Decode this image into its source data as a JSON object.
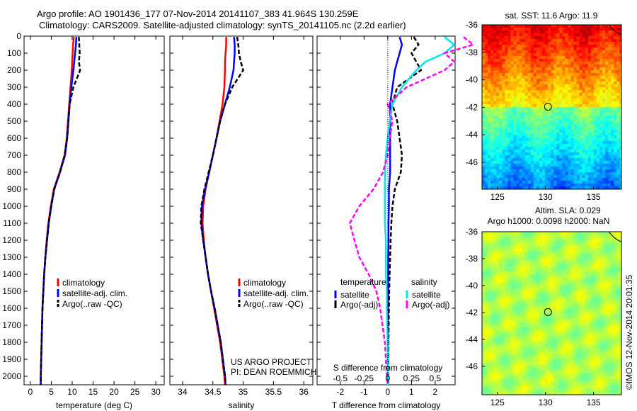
{
  "title_line1": "Argo profile: AO 1901436_177 07-Nov-2014 20141107_383 41.964S 130.259E",
  "title_line2": "Climatology: CARS2009. Satellite-adjusted climatology: synTS_20141105.nc (2.2d earlier)",
  "footer_project": "US ARGO PROJECT",
  "footer_pi": "PI: DEAN ROEMMICH",
  "imos_stamp": "©IMOS 12-Nov-2014 20:01:35",
  "colors": {
    "clim": "#ff0000",
    "sat": "#0000ff",
    "argo": "#000000",
    "sal_sat": "#00e5ee",
    "sal_argo": "#ff00ff"
  },
  "chart_data": [
    {
      "type": "line",
      "xlabel": "temperature (deg C)",
      "ylim": [
        2050,
        0
      ],
      "xlim": [
        -1.5,
        32
      ],
      "xticks": [
        0,
        5,
        10,
        15,
        20,
        25,
        30
      ],
      "yticks": [
        0,
        100,
        200,
        300,
        400,
        500,
        600,
        700,
        800,
        900,
        1000,
        1100,
        1200,
        1300,
        1400,
        1500,
        1600,
        1700,
        1800,
        1900,
        2000
      ],
      "legend": [
        "climatology",
        "satellite-adj. clim.",
        "Argo(..raw -QC)"
      ],
      "depth": [
        5,
        50,
        100,
        150,
        200,
        300,
        400,
        500,
        600,
        700,
        800,
        900,
        1000,
        1100,
        1200,
        1300,
        1400,
        1500,
        1600,
        1800,
        2000,
        2050
      ],
      "series": [
        {
          "name": "climatology",
          "values": [
            10.4,
            10.2,
            10.1,
            10.0,
            9.9,
            9.6,
            9.3,
            9.0,
            8.7,
            8.2,
            7.0,
            5.6,
            4.9,
            4.3,
            3.9,
            3.6,
            3.3,
            3.1,
            2.9,
            2.7,
            2.5,
            2.5
          ]
        },
        {
          "name": "satellite-adj. clim.",
          "values": [
            11.0,
            10.9,
            10.7,
            10.5,
            10.3,
            9.8,
            9.4,
            9.1,
            8.8,
            8.3,
            7.1,
            5.7,
            5.0,
            4.4,
            4.0,
            3.6,
            3.3,
            3.1,
            2.9,
            2.7,
            2.5,
            2.5
          ]
        },
        {
          "name": "Argo(..raw -QC)",
          "values": [
            11.6,
            11.7,
            11.8,
            11.6,
            11.9,
            10.3,
            9.4,
            9.1,
            8.8,
            8.2,
            7.1,
            5.7,
            5.0,
            4.4,
            4.0,
            3.6,
            3.3,
            3.1,
            2.9,
            2.7,
            2.5,
            2.5
          ]
        }
      ]
    },
    {
      "type": "line",
      "xlabel": "salinity",
      "ylim": [
        2050,
        0
      ],
      "xlim": [
        33.79,
        36.15
      ],
      "xticks": [
        34,
        34.5,
        35,
        35.5,
        36
      ],
      "legend": [
        "climatology",
        "satellite-adj. clim.",
        "Argo(..raw -QC)"
      ],
      "depth": [
        5,
        50,
        100,
        150,
        200,
        300,
        400,
        500,
        600,
        700,
        800,
        900,
        1000,
        1100,
        1200,
        1300,
        1400,
        1500,
        1600,
        1800,
        2000,
        2050
      ],
      "series": [
        {
          "name": "climatology",
          "values": [
            34.72,
            34.72,
            34.71,
            34.7,
            34.7,
            34.69,
            34.66,
            34.61,
            34.56,
            34.5,
            34.44,
            34.38,
            34.34,
            34.33,
            34.35,
            34.38,
            34.42,
            34.47,
            34.52,
            34.62,
            34.69,
            34.7
          ]
        },
        {
          "name": "satellite-adj. clim.",
          "values": [
            34.85,
            34.86,
            34.86,
            34.85,
            34.84,
            34.78,
            34.7,
            34.62,
            34.56,
            34.5,
            34.44,
            34.37,
            34.32,
            34.31,
            34.34,
            34.38,
            34.42,
            34.47,
            34.53,
            34.63,
            34.7,
            34.71
          ]
        },
        {
          "name": "Argo(..raw -QC)",
          "values": [
            34.9,
            34.92,
            34.93,
            34.96,
            35.0,
            34.82,
            34.7,
            34.62,
            34.56,
            34.5,
            34.43,
            34.36,
            34.31,
            34.3,
            34.34,
            34.38,
            34.42,
            34.47,
            34.53,
            34.63,
            34.7,
            34.71
          ]
        }
      ]
    },
    {
      "type": "line",
      "xlabel": "T difference from climatology",
      "x2label": "S difference from climatology",
      "ylim": [
        2050,
        0
      ],
      "xlim": [
        -2.98,
        2.84
      ],
      "xticks": [
        -2,
        -1,
        0,
        1,
        2
      ],
      "x2ticks": [
        -0.5,
        -0.25,
        0,
        0.25,
        0.5
      ],
      "x2_per_x": 0.25,
      "legend_title_t": "temperature",
      "legend_title_s": "salinity",
      "legend": [
        "satellite",
        "Argo(-adj)",
        "satellite",
        "Argo(-adj)"
      ],
      "depth": [
        5,
        50,
        100,
        150,
        200,
        300,
        400,
        500,
        600,
        700,
        800,
        900,
        1000,
        1100,
        1200,
        1300,
        1400,
        1500,
        1600,
        1800,
        2000,
        2050
      ],
      "series": [
        {
          "name": "T satellite",
          "values": [
            0.5,
            0.6,
            0.5,
            0.4,
            0.3,
            0.2,
            0.1,
            0.1,
            0.1,
            0.1,
            0.1,
            0.05,
            0.05,
            0.03,
            0.03,
            0.02,
            0.02,
            0.02,
            0.01,
            0.01,
            0,
            0
          ]
        },
        {
          "name": "T Argo(-adj)",
          "values": [
            1.1,
            1.3,
            1.0,
            1.2,
            1.4,
            0.4,
            0.2,
            0.4,
            0.5,
            0.6,
            0.55,
            0.3,
            0.2,
            0.15,
            0.12,
            0.1,
            0.08,
            0.06,
            0.05,
            0.03,
            0.02,
            0.02
          ]
        },
        {
          "name": "S satellite",
          "values": [
            0.6,
            0.7,
            0.6,
            0.4,
            0.3,
            0.15,
            0.05,
            0.02,
            0,
            -0.02,
            -0.03,
            -0.03,
            -0.03,
            -0.03,
            -0.02,
            -0.02,
            -0.02,
            -0.01,
            -0.01,
            0,
            0,
            0
          ]
        },
        {
          "name": "S Argo(-adj)",
          "values": [
            0.8,
            0.9,
            0.6,
            0.7,
            0.6,
            0.2,
            0,
            0.05,
            0.02,
            0,
            -0.05,
            -0.15,
            -0.3,
            -0.4,
            -0.35,
            -0.3,
            -0.2,
            -0.12,
            -0.08,
            -0.03,
            -0.01,
            0
          ]
        }
      ]
    },
    {
      "type": "heatmap",
      "title": "sat. SST: 11.6 Argo: 11.9",
      "xlim": [
        123.4,
        137.9
      ],
      "ylim": [
        -47.96,
        -36
      ],
      "xticks": [
        125,
        130,
        135
      ],
      "yticks": [
        -36,
        -38,
        -40,
        -42,
        -44,
        -46
      ],
      "marker": [
        130.259,
        -41.964
      ]
    },
    {
      "type": "heatmap",
      "title1": "Altim. SLA: 0.029",
      "title2": "Argo h1000: 0.0098 h2000: NaN",
      "xlim": [
        123.4,
        137.9
      ],
      "ylim": [
        -48.1,
        -36
      ],
      "xticks": [
        125,
        130,
        135
      ],
      "yticks": [
        -36,
        -38,
        -40,
        -42,
        -44,
        -46
      ],
      "marker": [
        130.259,
        -41.964
      ]
    }
  ]
}
